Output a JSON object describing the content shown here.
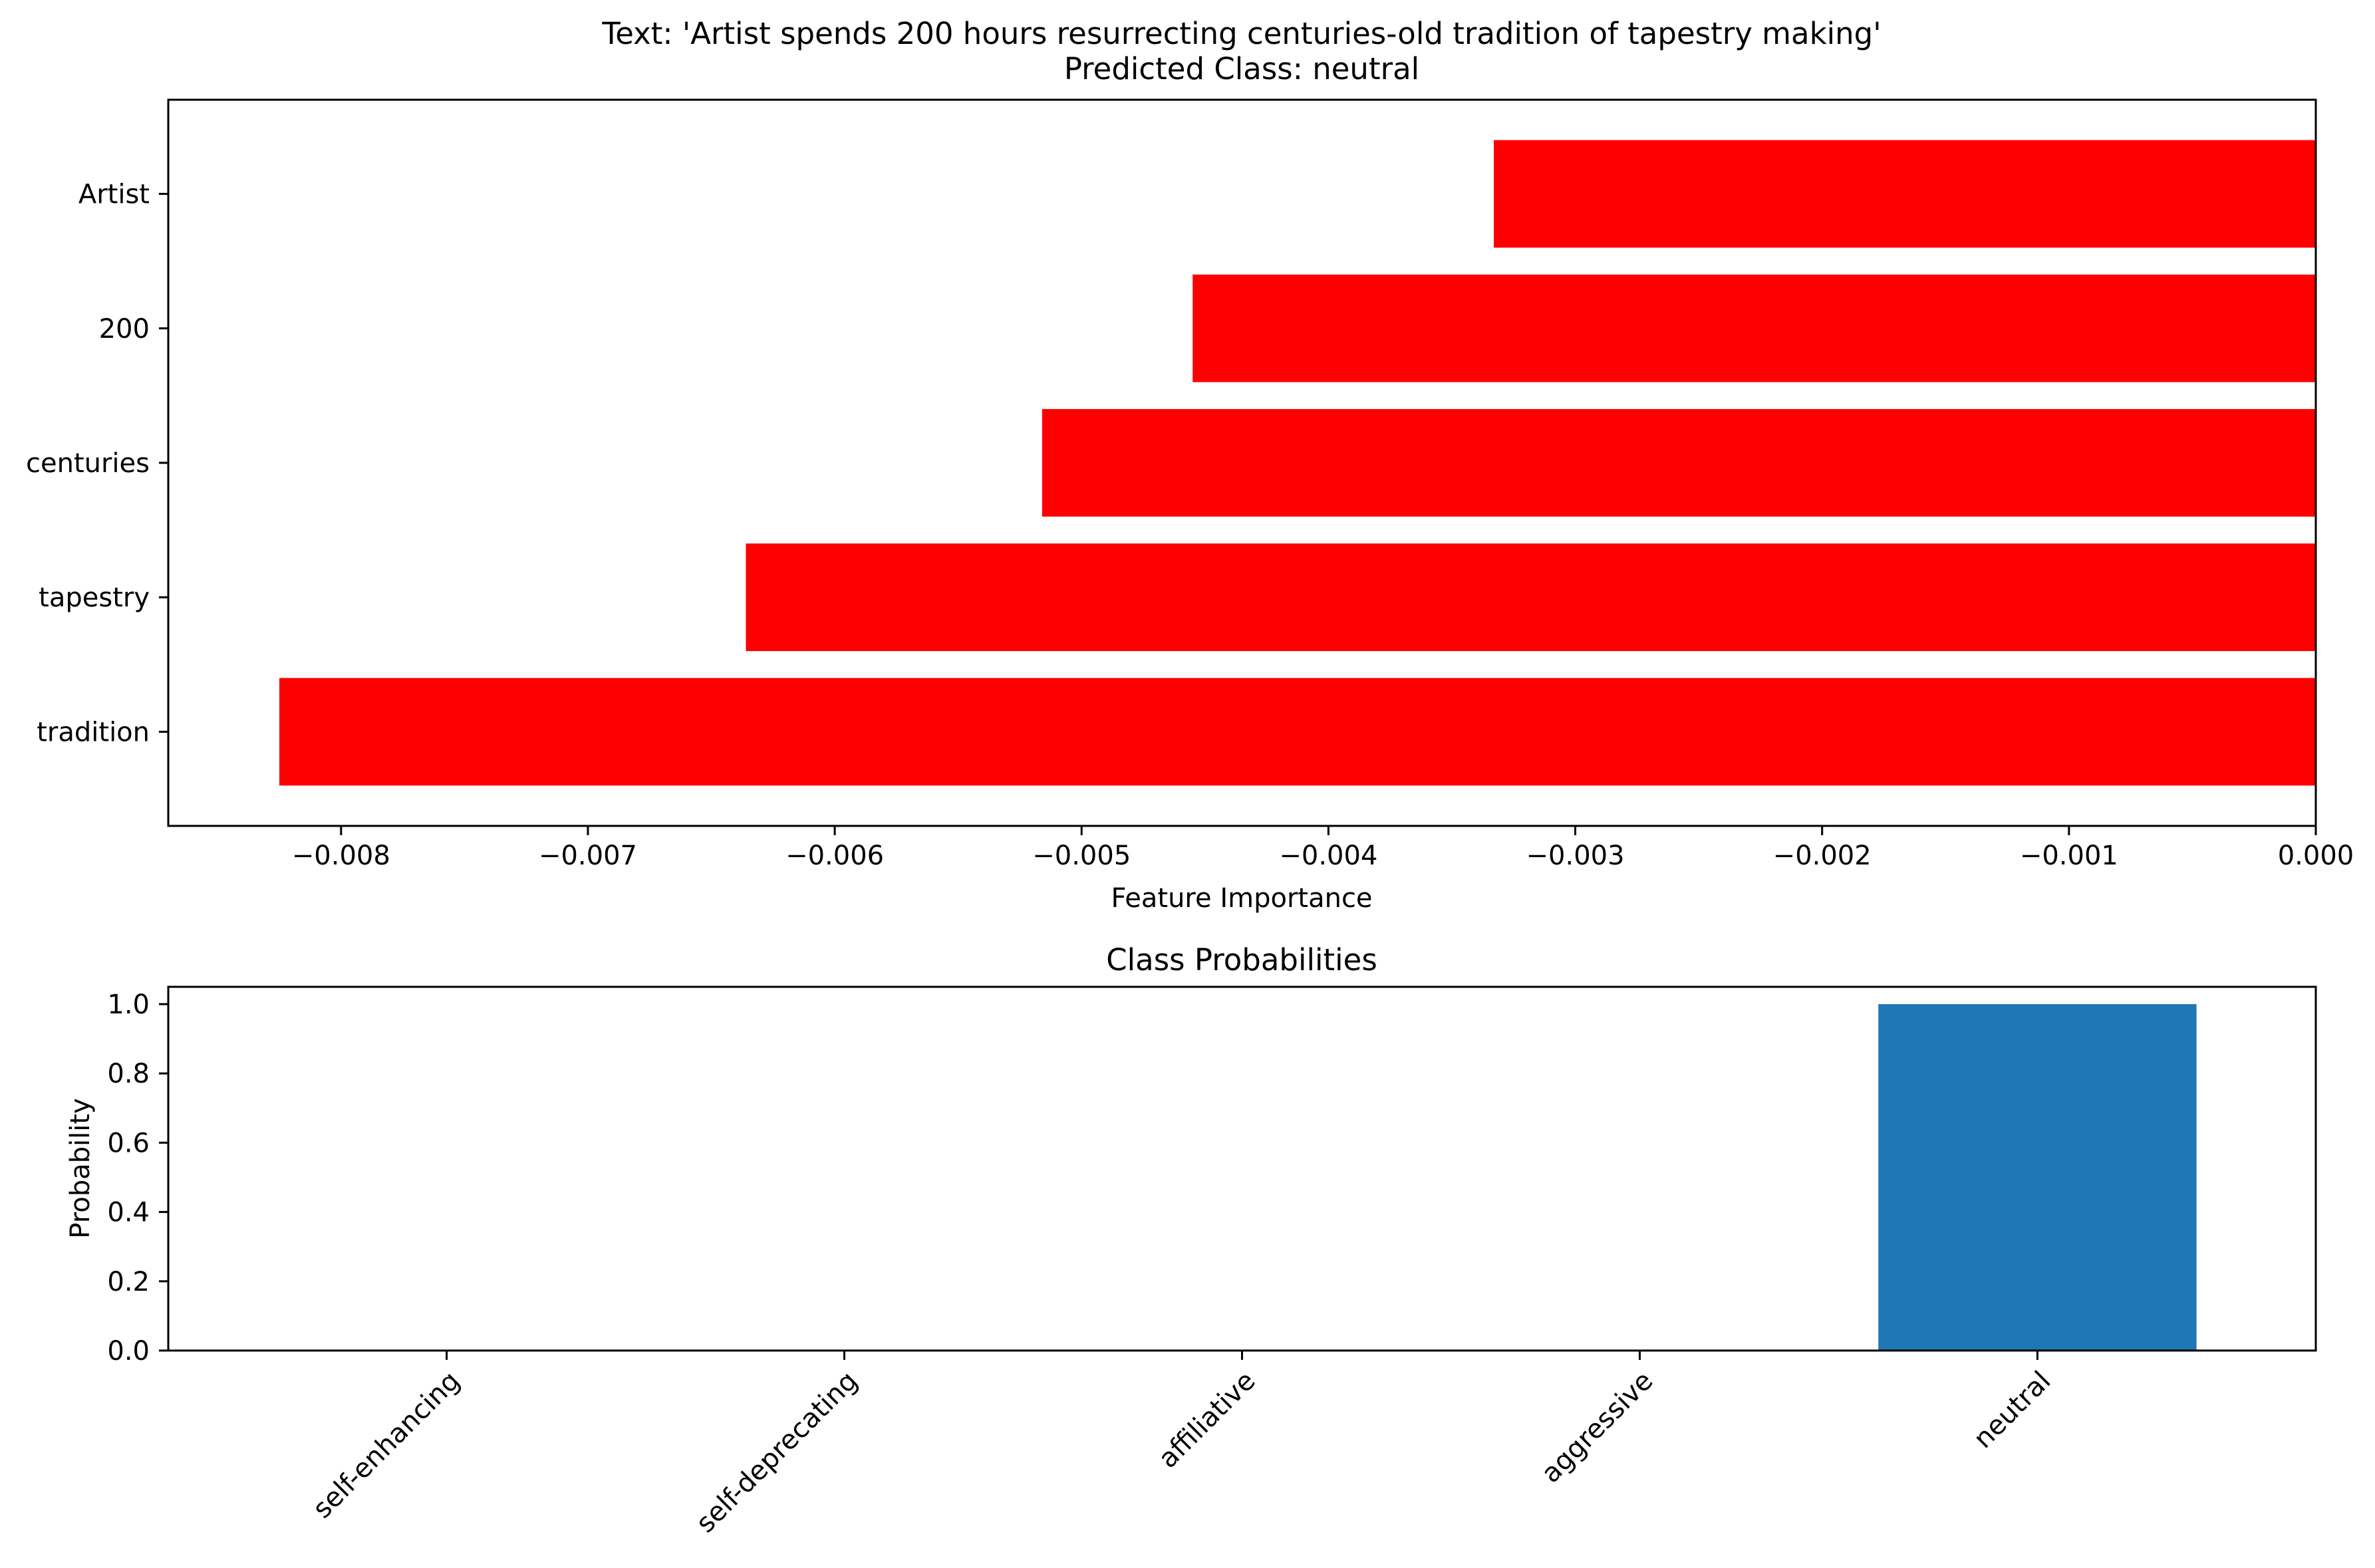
{
  "chart_data": [
    {
      "type": "bar",
      "orientation": "horizontal",
      "title_lines": [
        "Text: 'Artist spends 200 hours resurrecting centuries-old tradition of tapestry making'",
        "Predicted Class: neutral"
      ],
      "xlabel": "Feature Importance",
      "ylabel": "",
      "categories": [
        "Artist",
        "200",
        "centuries",
        "tapestry",
        "tradition"
      ],
      "values": [
        -0.00333,
        -0.00455,
        -0.00516,
        -0.00636,
        -0.00825
      ],
      "xlim": [
        -0.0087,
        0.0
      ],
      "xticks": [
        -0.008,
        -0.007,
        -0.006,
        -0.005,
        -0.004,
        -0.003,
        -0.002,
        -0.001,
        0.0
      ],
      "xtick_labels": [
        "−0.008",
        "−0.007",
        "−0.006",
        "−0.005",
        "−0.004",
        "−0.003",
        "−0.002",
        "−0.001",
        "0.000"
      ],
      "bar_color": "#ff0000",
      "grid": false
    },
    {
      "type": "bar",
      "orientation": "vertical",
      "title": "Class Probabilities",
      "xlabel": "",
      "ylabel": "Probability",
      "categories": [
        "self-enhancing",
        "self-deprecating",
        "affiliative",
        "aggressive",
        "neutral"
      ],
      "values": [
        0.0,
        0.0,
        0.0,
        0.0,
        1.0
      ],
      "ylim": [
        0.0,
        1.05
      ],
      "yticks": [
        0.0,
        0.2,
        0.4,
        0.6,
        0.8,
        1.0
      ],
      "ytick_labels": [
        "0.0",
        "0.2",
        "0.4",
        "0.6",
        "0.8",
        "1.0"
      ],
      "bar_color": "#1f77b4",
      "xtick_rotation": 45,
      "grid": false
    }
  ]
}
